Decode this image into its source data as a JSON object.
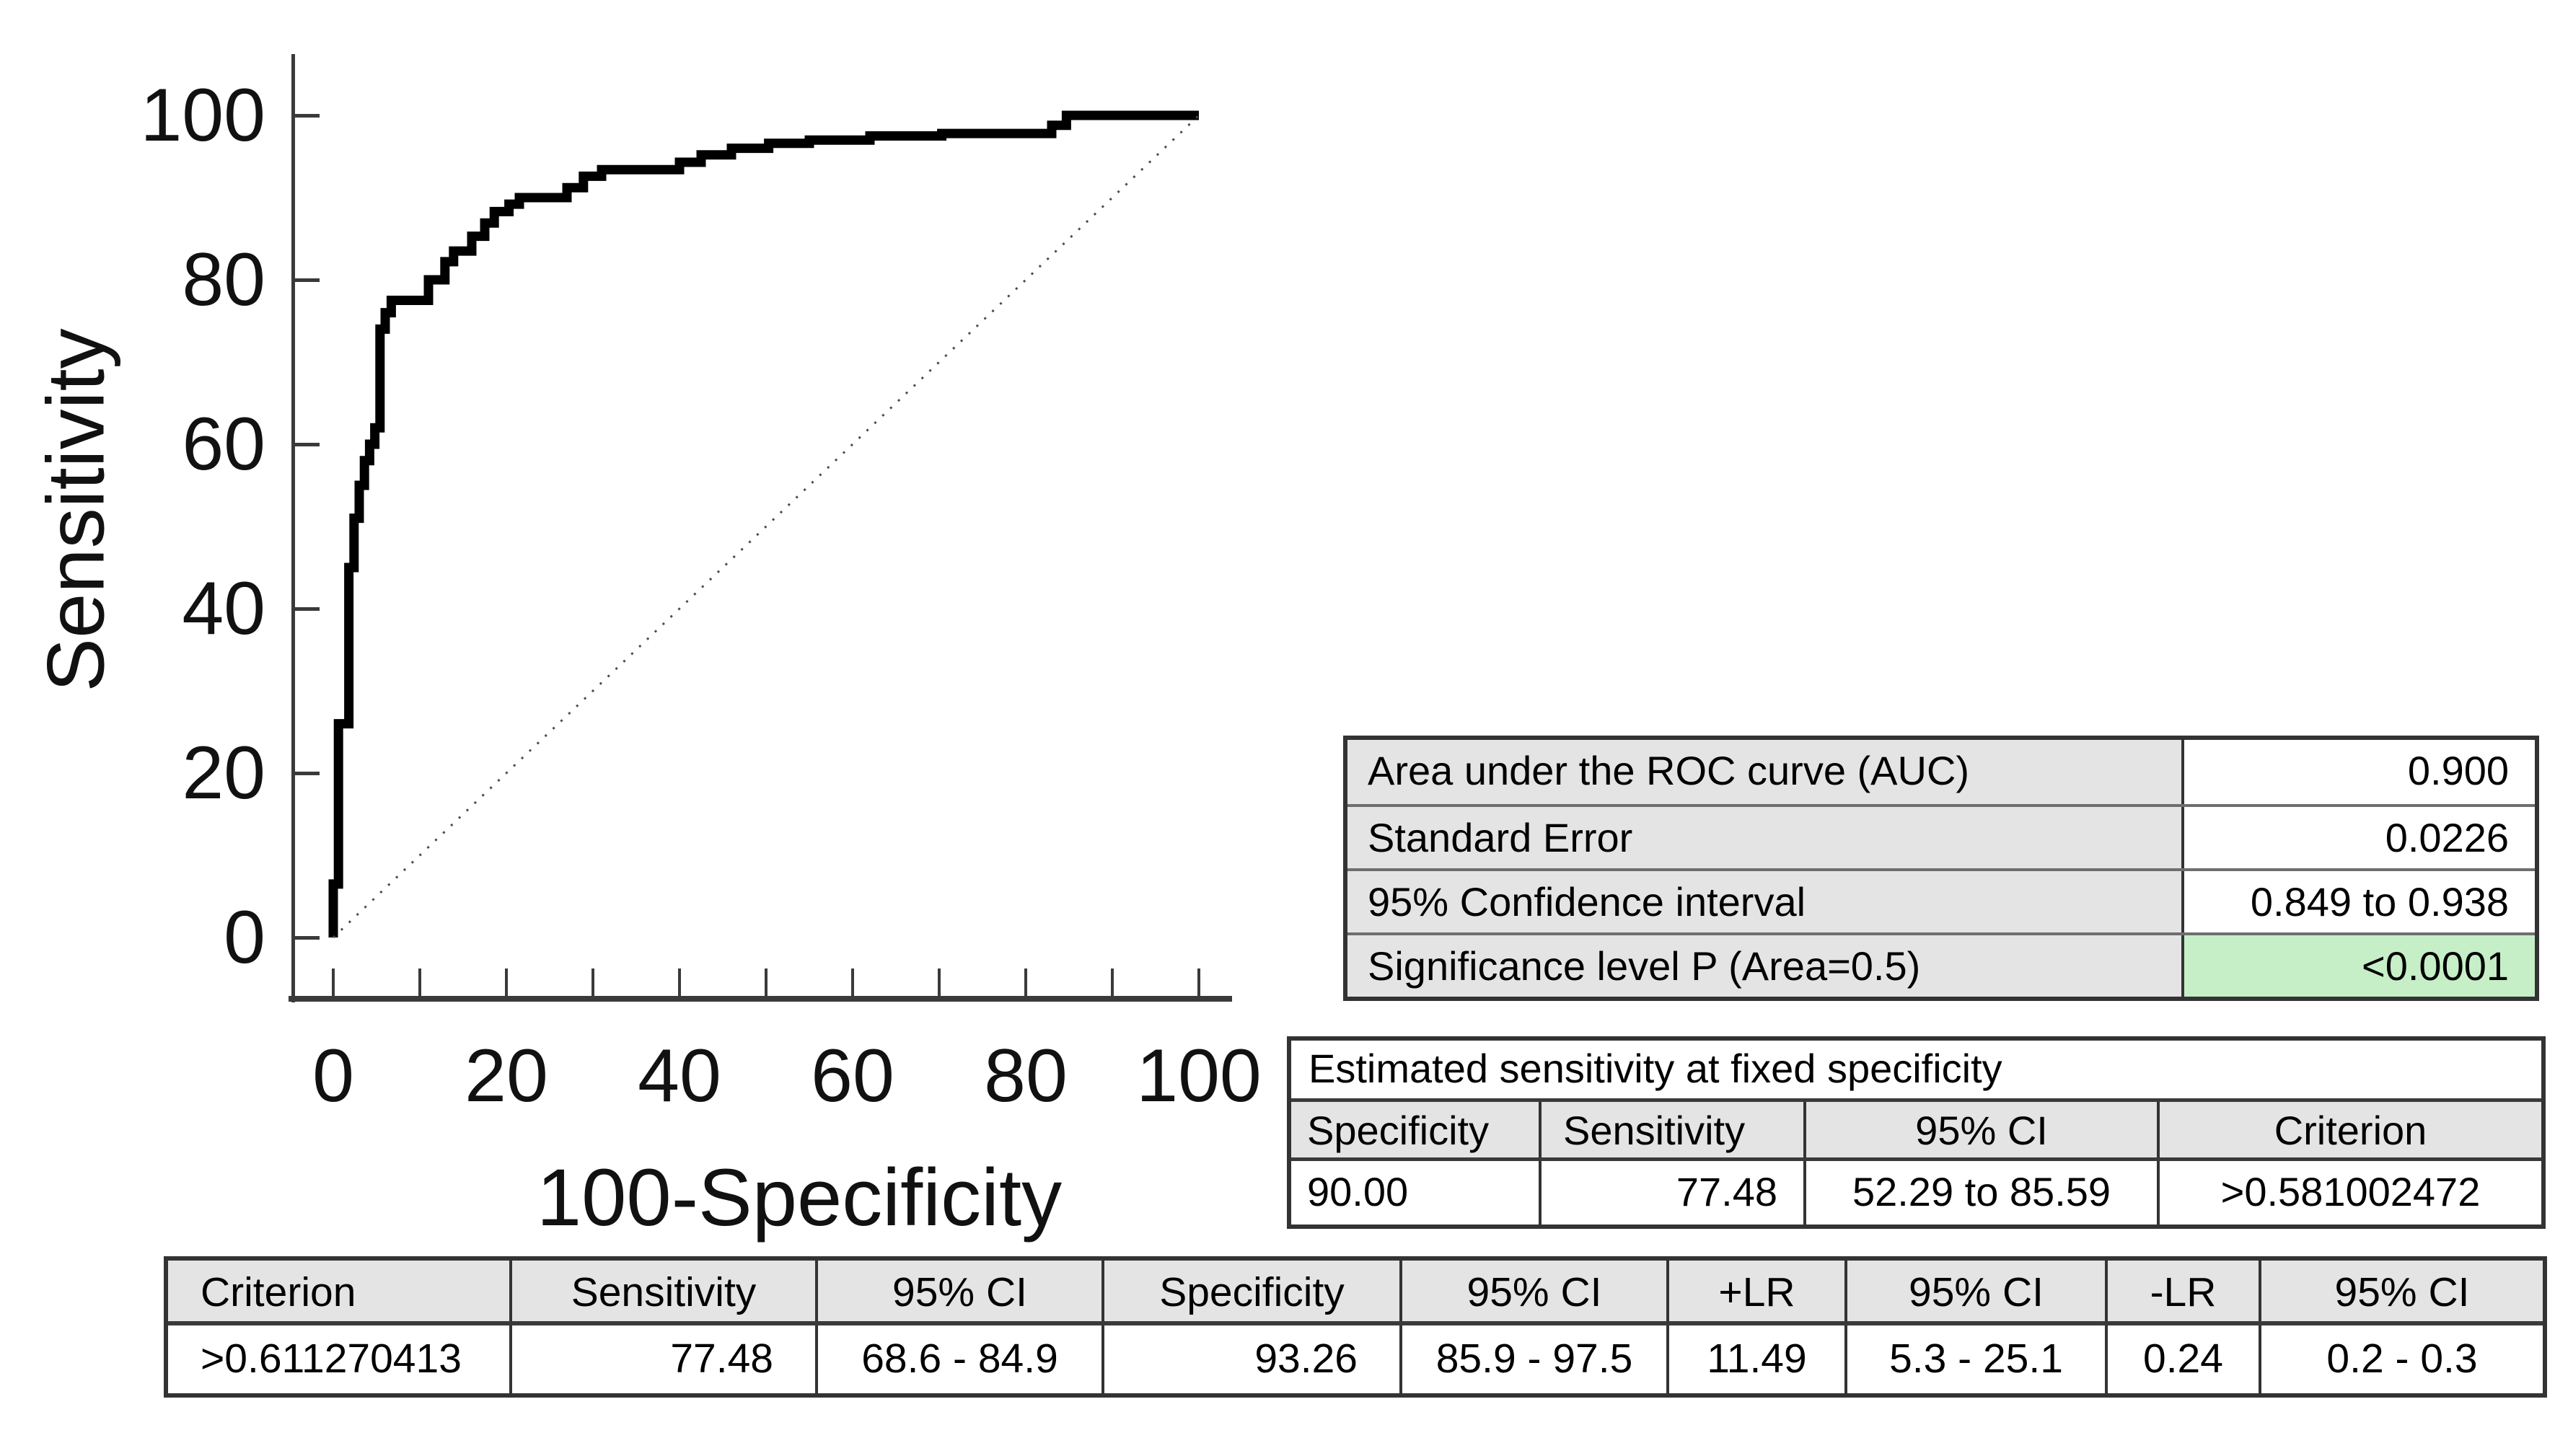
{
  "chart_data": {
    "type": "line",
    "subtype": "roc-step-curve",
    "title": "",
    "xlabel": "100-Specificity",
    "ylabel": "Sensitivity",
    "xlim": [
      0,
      100
    ],
    "ylim": [
      0,
      100
    ],
    "grid": false,
    "legend": "none",
    "x_ticks": [
      0,
      10,
      20,
      30,
      40,
      50,
      60,
      70,
      80,
      90,
      100
    ],
    "x_tick_labels": [
      "0",
      "20",
      "40",
      "60",
      "80",
      "100"
    ],
    "x_tick_label_values": [
      0,
      20,
      40,
      60,
      80,
      100
    ],
    "y_ticks": [
      0,
      20,
      40,
      60,
      80,
      100
    ],
    "y_tick_labels": [
      "0",
      "20",
      "40",
      "60",
      "80",
      "100"
    ],
    "y_tick_label_values": [
      0,
      20,
      40,
      60,
      80,
      100
    ],
    "series": [
      {
        "name": "ROC curve",
        "style": "step",
        "color": "#000000",
        "points": [
          [
            0,
            0
          ],
          [
            0,
            6.5
          ],
          [
            0.6,
            6.5
          ],
          [
            0.6,
            26
          ],
          [
            1.8,
            26
          ],
          [
            1.8,
            45
          ],
          [
            2.4,
            45
          ],
          [
            2.4,
            51
          ],
          [
            3,
            51
          ],
          [
            3,
            55
          ],
          [
            3.6,
            55
          ],
          [
            3.6,
            58
          ],
          [
            4.2,
            58
          ],
          [
            4.2,
            60
          ],
          [
            4.8,
            60
          ],
          [
            4.8,
            62
          ],
          [
            5.4,
            62
          ],
          [
            5.4,
            74
          ],
          [
            6,
            74
          ],
          [
            6,
            76
          ],
          [
            6.7,
            76
          ],
          [
            6.7,
            77.5
          ],
          [
            11,
            77.5
          ],
          [
            11,
            80
          ],
          [
            12.9,
            80
          ],
          [
            12.9,
            82.2
          ],
          [
            13.9,
            82.2
          ],
          [
            13.9,
            83.5
          ],
          [
            16,
            83.5
          ],
          [
            16,
            85.3
          ],
          [
            17.5,
            85.3
          ],
          [
            17.5,
            86.9
          ],
          [
            18.6,
            86.9
          ],
          [
            18.6,
            88.3
          ],
          [
            20.3,
            88.3
          ],
          [
            20.3,
            89.2
          ],
          [
            21.5,
            89.2
          ],
          [
            21.5,
            90
          ],
          [
            27,
            90
          ],
          [
            27,
            91.2
          ],
          [
            28.9,
            91.2
          ],
          [
            28.9,
            92.6
          ],
          [
            31,
            92.6
          ],
          [
            31,
            93.4
          ],
          [
            40,
            93.4
          ],
          [
            40,
            94.3
          ],
          [
            42.5,
            94.3
          ],
          [
            42.5,
            95.2
          ],
          [
            46,
            95.2
          ],
          [
            46,
            96
          ],
          [
            50.3,
            96
          ],
          [
            50.3,
            96.6
          ],
          [
            55,
            96.6
          ],
          [
            55,
            97
          ],
          [
            62,
            97
          ],
          [
            62,
            97.5
          ],
          [
            70.3,
            97.5
          ],
          [
            70.3,
            97.8
          ],
          [
            83,
            97.8
          ],
          [
            83,
            98.8
          ],
          [
            84.7,
            98.8
          ],
          [
            84.7,
            100
          ],
          [
            100,
            100
          ]
        ]
      },
      {
        "name": "reference diagonal",
        "style": "dotted",
        "color": "#4a4a4a",
        "points": [
          [
            0,
            0
          ],
          [
            100,
            100
          ]
        ]
      }
    ]
  },
  "auc_table": {
    "highlight_color": "#c6efc7",
    "rows": [
      {
        "label": "Area under the ROC curve (AUC)",
        "value": "0.900"
      },
      {
        "label": "Standard Error",
        "value": "0.0226"
      },
      {
        "label": "95% Confidence interval",
        "value": "0.849 to 0.938"
      },
      {
        "label": "Significance level P (Area=0.5)",
        "value": "<0.0001"
      }
    ]
  },
  "fixed_specificity_table": {
    "title": "Estimated sensitivity at fixed specificity",
    "headers": [
      "Specificity",
      "Sensitivity",
      "95% CI",
      "Criterion"
    ],
    "rows": [
      [
        "90.00",
        "77.48",
        "52.29 to 85.59",
        ">0.581002472"
      ]
    ]
  },
  "criterion_table": {
    "headers": [
      "Criterion",
      "Sensitivity",
      "95% CI",
      "Specificity",
      "95% CI",
      "+LR",
      "95% CI",
      "-LR",
      "95% CI"
    ],
    "rows": [
      [
        ">0.611270413",
        "77.48",
        "68.6 - 84.9",
        "93.26",
        "85.9 - 97.5",
        "11.49",
        "5.3 - 25.1",
        "0.24",
        "0.2 - 0.3"
      ]
    ]
  }
}
